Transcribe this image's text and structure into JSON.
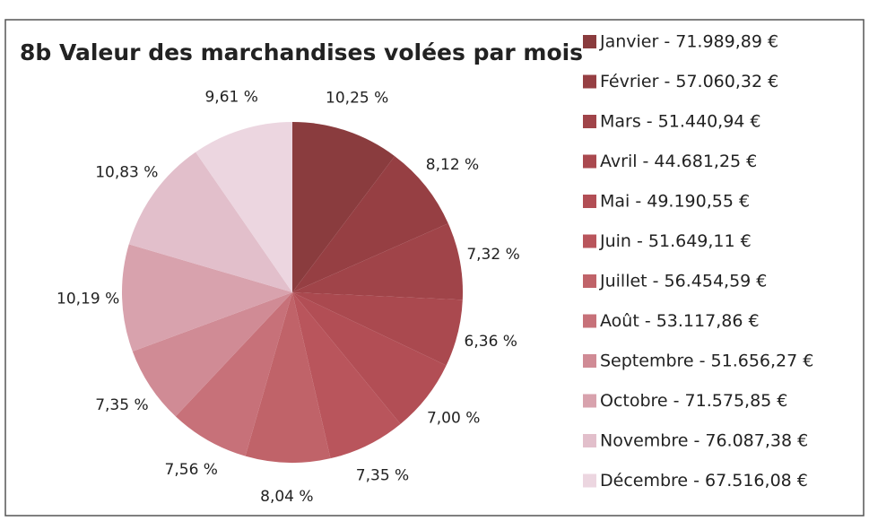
{
  "chart_data": {
    "type": "pie",
    "title": "8b  Valeur des marchandises volées par mois",
    "categories": [
      "Janvier - 71.989,89 €",
      "Février - 57.060,32 €",
      "Mars - 51.440,94 €",
      "Avril - 44.681,25 €",
      "Mai - 49.190,55 €",
      "Juin - 51.649,11 €",
      "Juillet - 56.454,59 €",
      "Août - 53.117,86 €",
      "Septembre - 51.656,27 €",
      "Octobre - 71.575,85 €",
      "Novembre - 76.087,38 €",
      "Décembre - 67.516,08 €"
    ],
    "values": [
      10.25,
      8.12,
      7.32,
      6.36,
      7.0,
      7.35,
      8.04,
      7.56,
      7.35,
      10.19,
      10.83,
      9.61
    ],
    "value_labels": [
      "10,25 %",
      "8,12 %",
      "7,32 %",
      "6,36 %",
      "7,00 %",
      "7,35 %",
      "8,04 %",
      "7,56 %",
      "7,35 %",
      "10,19 %",
      "10,83 %",
      "9,61 %"
    ],
    "colors": [
      "#8a3c3e",
      "#963f43",
      "#a04449",
      "#aa494f",
      "#b24e55",
      "#b9555c",
      "#c06369",
      "#c77179",
      "#d08b95",
      "#d8a2ad",
      "#e2bfcb",
      "#ecd6e0"
    ]
  }
}
